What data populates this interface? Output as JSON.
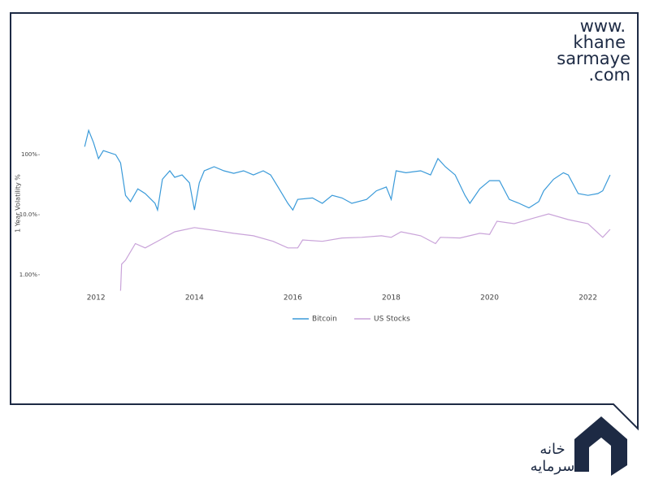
{
  "chart_data": {
    "type": "line",
    "y_label": "1 Year Volatility %",
    "log_y": true,
    "grid": false,
    "legend": "bottom",
    "xlim": [
      2011.7,
      2022.6
    ],
    "xticks": [
      2012,
      2014,
      2016,
      2018,
      2020,
      2022
    ],
    "ylim": [
      0.5,
      300
    ],
    "yticks": [
      {
        "value": 1,
        "label": "1.00%"
      },
      {
        "value": 10,
        "label": "10.0%"
      },
      {
        "value": 100,
        "label": "100%"
      }
    ],
    "series": [
      {
        "name": "Bitcoin",
        "color": "#3a9ad9",
        "x": [
          2011.77,
          2011.85,
          2011.95,
          2012.05,
          2012.15,
          2012.4,
          2012.5,
          2012.6,
          2012.7,
          2012.85,
          2013.0,
          2013.2,
          2013.25,
          2013.35,
          2013.5,
          2013.6,
          2013.75,
          2013.9,
          2014.0,
          2014.1,
          2014.2,
          2014.4,
          2014.6,
          2014.8,
          2015.0,
          2015.2,
          2015.4,
          2015.55,
          2015.7,
          2015.9,
          2016.0,
          2016.1,
          2016.4,
          2016.6,
          2016.8,
          2017.0,
          2017.2,
          2017.5,
          2017.7,
          2017.9,
          2018.0,
          2018.1,
          2018.3,
          2018.6,
          2018.8,
          2018.95,
          2019.1,
          2019.3,
          2019.5,
          2019.6,
          2019.8,
          2020.0,
          2020.2,
          2020.4,
          2020.6,
          2020.8,
          2021.0,
          2021.1,
          2021.3,
          2021.5,
          2021.6,
          2021.8,
          2022.0,
          2022.2,
          2022.3,
          2022.45
        ],
        "values": [
          136,
          254,
          159,
          86,
          117,
          100,
          73,
          21,
          16.5,
          27,
          22.5,
          15.5,
          12,
          39,
          54,
          42,
          46,
          34,
          12,
          34,
          54,
          63,
          54,
          49,
          54,
          46,
          54,
          46,
          29,
          15.5,
          12,
          18,
          19,
          15.5,
          21,
          19,
          15.5,
          18,
          25,
          29,
          18,
          54,
          50,
          54,
          46,
          86,
          63,
          46,
          21,
          15.5,
          27,
          37,
          37,
          18,
          15.5,
          13,
          16.5,
          25,
          39,
          50,
          46,
          22.5,
          21,
          22.5,
          25,
          46
        ]
      },
      {
        "name": "US Stocks",
        "color": "#c9a3d9",
        "x": [
          2012.5,
          2012.52,
          2012.6,
          2012.8,
          2013.0,
          2013.3,
          2013.6,
          2014.0,
          2014.4,
          2014.8,
          2015.2,
          2015.6,
          2015.9,
          2016.1,
          2016.2,
          2016.6,
          2017.0,
          2017.4,
          2017.8,
          2018.0,
          2018.2,
          2018.6,
          2018.9,
          2019.0,
          2019.4,
          2019.8,
          2020.0,
          2020.15,
          2020.5,
          2020.9,
          2021.2,
          2021.6,
          2022.0,
          2022.3,
          2022.45
        ],
        "values": [
          0.54,
          1.5,
          1.75,
          3.3,
          2.8,
          3.8,
          5.2,
          6.1,
          5.5,
          4.9,
          4.45,
          3.6,
          2.8,
          2.8,
          3.8,
          3.6,
          4.1,
          4.2,
          4.45,
          4.2,
          5.2,
          4.45,
          3.3,
          4.2,
          4.1,
          4.9,
          4.7,
          7.8,
          7.1,
          8.8,
          10.3,
          8.3,
          7.1,
          4.2,
          5.7
        ]
      }
    ]
  },
  "watermark": {
    "lines": [
      "www.",
      "khane",
      "sarmaye",
      ".com"
    ]
  },
  "logo": {
    "lines": [
      "خانه",
      "سرمایه"
    ]
  }
}
